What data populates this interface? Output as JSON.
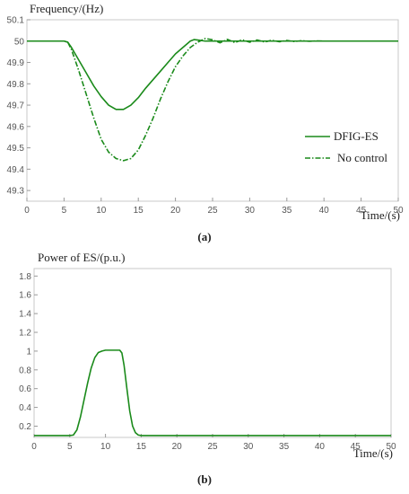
{
  "chart_data": [
    {
      "id": "a",
      "type": "line",
      "caption": "(a)",
      "ylabel": "Frequency/(Hz)",
      "xlabel": "Time/(s)",
      "xlim": [
        0,
        50
      ],
      "ylim": [
        49.25,
        50.1
      ],
      "xticks": [
        0,
        5,
        10,
        15,
        20,
        25,
        30,
        35,
        40,
        45,
        50
      ],
      "yticks": [
        49.3,
        49.4,
        49.5,
        49.6,
        49.7,
        49.8,
        49.9,
        50,
        50.1
      ],
      "grid": false,
      "legend_position": "right",
      "color": "#1a8a1a",
      "series": [
        {
          "name": "DFIG-ES",
          "style": "solid",
          "x": [
            0,
            5,
            5.5,
            6,
            7,
            8,
            9,
            10,
            11,
            12,
            13,
            14,
            15,
            16,
            17,
            18,
            19,
            20,
            21,
            22,
            22.5,
            23,
            24,
            25,
            30,
            40,
            50
          ],
          "y": [
            50,
            50,
            49.995,
            49.97,
            49.91,
            49.85,
            49.79,
            49.74,
            49.7,
            49.68,
            49.68,
            49.7,
            49.735,
            49.78,
            49.82,
            49.86,
            49.9,
            49.94,
            49.97,
            50.0,
            50.007,
            50.005,
            50.0,
            50.0,
            50.0,
            50.0,
            50.0
          ]
        },
        {
          "name": "No control",
          "style": "dash-dot",
          "x": [
            0,
            5,
            5.5,
            6,
            7,
            8,
            9,
            10,
            11,
            12,
            13,
            14,
            15,
            16,
            17,
            18,
            19,
            20,
            21,
            22,
            23,
            24,
            25,
            26,
            27,
            28,
            29,
            30,
            31,
            32,
            33,
            34,
            35,
            36,
            37,
            38,
            39,
            40,
            41,
            45,
            50
          ],
          "y": [
            50,
            50,
            49.995,
            49.96,
            49.86,
            49.75,
            49.64,
            49.54,
            49.48,
            49.45,
            49.44,
            49.45,
            49.49,
            49.56,
            49.64,
            49.73,
            49.81,
            49.88,
            49.93,
            49.97,
            49.995,
            50.012,
            50.006,
            49.992,
            50.008,
            49.993,
            50.006,
            49.995,
            50.005,
            49.996,
            50.004,
            49.997,
            50.003,
            49.998,
            50.002,
            49.999,
            50.001,
            50.0,
            50.0,
            50.0,
            50.0
          ]
        }
      ]
    },
    {
      "id": "b",
      "type": "line",
      "caption": "(b)",
      "ylabel": "Power of ES/(p.u.)",
      "xlabel": "Time/(s)",
      "xlim": [
        0,
        50
      ],
      "ylim": [
        0.08,
        1.88
      ],
      "xticks": [
        0,
        5,
        10,
        15,
        20,
        25,
        30,
        35,
        40,
        45,
        50
      ],
      "yticks": [
        0.2,
        0.4,
        0.6,
        0.8,
        1,
        1.2,
        1.4,
        1.6,
        1.8
      ],
      "grid": false,
      "color": "#1a8a1a",
      "series": [
        {
          "style": "solid",
          "x": [
            0,
            5,
            5.5,
            6,
            6.5,
            7,
            7.5,
            8,
            8.5,
            9,
            9.5,
            10,
            11,
            12,
            12.3,
            12.6,
            13,
            13.4,
            13.8,
            14.2,
            14.6,
            15,
            20,
            30,
            40,
            50
          ],
          "y": [
            0.1,
            0.1,
            0.105,
            0.16,
            0.3,
            0.48,
            0.66,
            0.82,
            0.93,
            0.985,
            1.0,
            1.01,
            1.01,
            1.01,
            0.98,
            0.85,
            0.6,
            0.36,
            0.2,
            0.13,
            0.105,
            0.1,
            0.1,
            0.1,
            0.1,
            0.1
          ]
        }
      ]
    }
  ]
}
